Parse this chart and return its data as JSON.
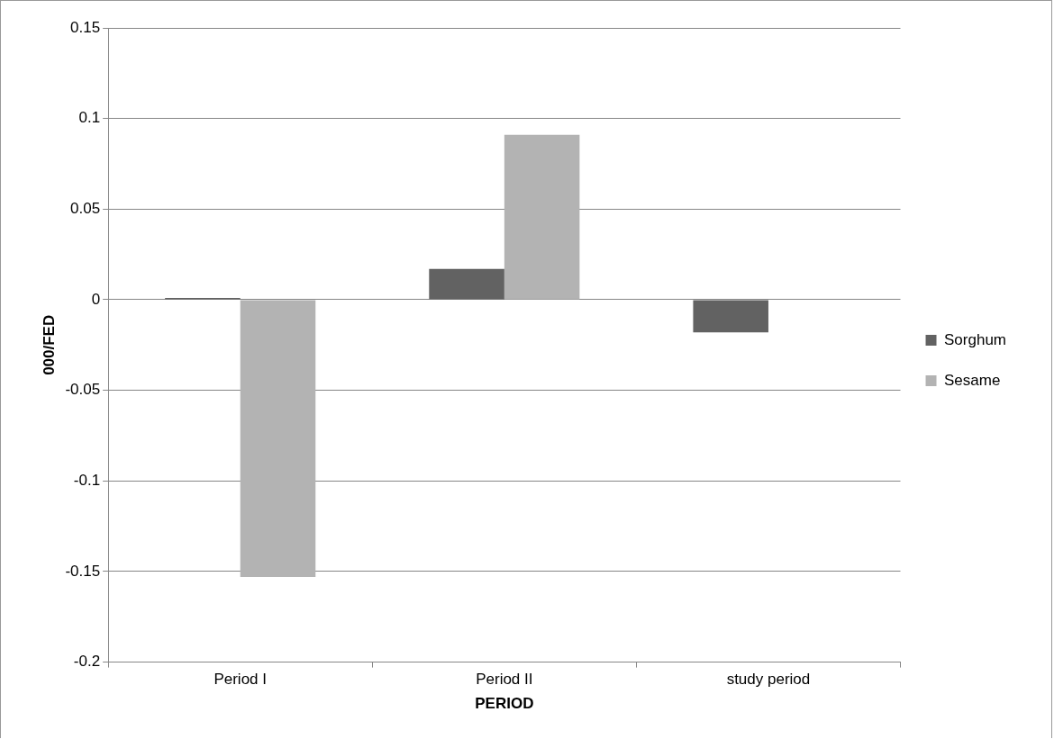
{
  "chart_data": {
    "type": "bar",
    "xlabel": "PERIOD",
    "ylabel": "000/FED",
    "categories": [
      "Period I",
      "Period II",
      "study period"
    ],
    "series": [
      {
        "name": "Sorghum",
        "color": "#626262",
        "values": [
          0.001,
          0.017,
          -0.018
        ]
      },
      {
        "name": "Sesame",
        "color": "#b3b3b3",
        "values": [
          -0.153,
          0.091,
          0
        ]
      }
    ],
    "ylim": [
      -0.2,
      0.15
    ],
    "yticks": [
      -0.2,
      -0.15,
      -0.1,
      -0.05,
      0,
      0.05,
      0.1,
      0.15
    ],
    "grid": "y",
    "legend": "right"
  }
}
